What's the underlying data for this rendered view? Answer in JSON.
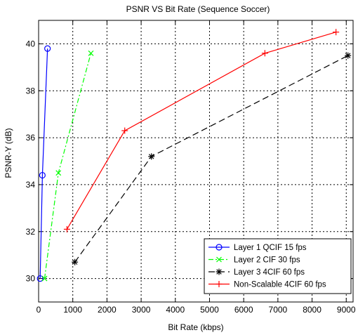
{
  "chart_data": {
    "type": "line",
    "title": "PSNR VS Bit Rate (Sequence Soccer)",
    "xlabel": "Bit Rate (kbps)",
    "ylabel": "PSNR-Y (dB)",
    "xlim": [
      0,
      9200
    ],
    "ylim": [
      29,
      41
    ],
    "xticks": [
      0,
      1000,
      2000,
      3000,
      4000,
      5000,
      6000,
      7000,
      8000,
      9000
    ],
    "yticks": [
      30,
      32,
      34,
      36,
      38,
      40
    ],
    "grid": true,
    "legend_position": "bottom-right",
    "series": [
      {
        "name": "Layer 1 QCIF 15 fps",
        "color": "#0000ff",
        "line_style": "solid",
        "marker": "circle",
        "x": [
          45,
          110,
          260
        ],
        "y": [
          30.0,
          34.4,
          39.8
        ]
      },
      {
        "name": "Layer 2 CIF 30 fps",
        "color": "#00ff00",
        "line_style": "dash-dot",
        "marker": "x",
        "x": [
          175,
          580,
          1530
        ],
        "y": [
          30.0,
          34.5,
          39.6
        ]
      },
      {
        "name": "Layer 3 4CIF 60 fps",
        "color": "#000000",
        "line_style": "dashed",
        "marker": "star",
        "x": [
          1060,
          3300,
          9050
        ],
        "y": [
          30.7,
          35.2,
          39.5
        ]
      },
      {
        "name": "Non-Scalable 4CIF 60 fps",
        "color": "#ff0000",
        "line_style": "solid",
        "marker": "plus",
        "x": [
          830,
          2520,
          6620,
          8700
        ],
        "y": [
          32.1,
          36.3,
          39.6,
          40.5
        ]
      }
    ]
  }
}
